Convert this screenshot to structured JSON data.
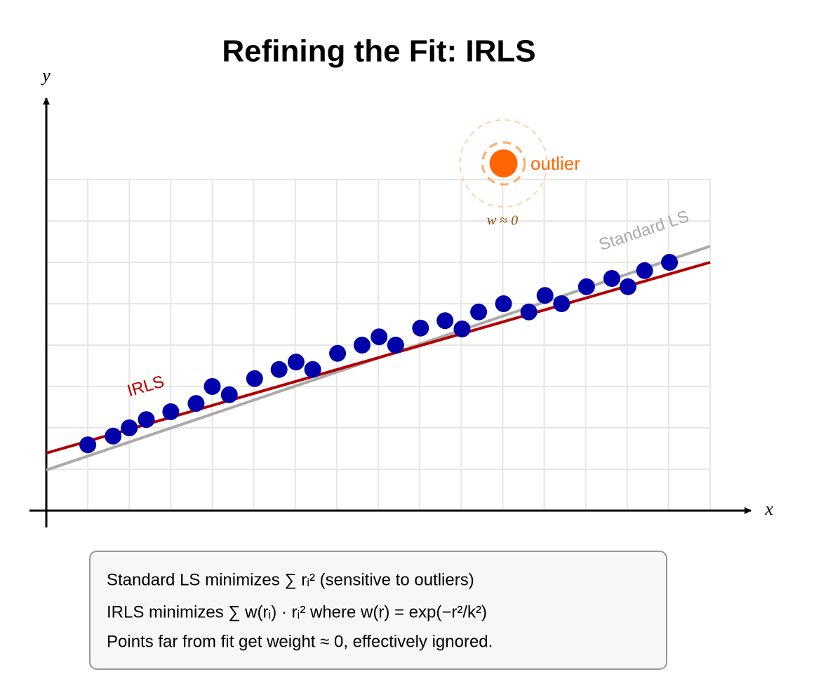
{
  "chart_data": {
    "type": "scatter",
    "title": "Refining the Fit: IRLS",
    "x_label": "x",
    "y_label": "y",
    "xlim": [
      0,
      16
    ],
    "ylim": [
      0,
      8
    ],
    "xticks": [
      1,
      2,
      3,
      4,
      5,
      6,
      7,
      8,
      9,
      10,
      11,
      12,
      13,
      14,
      15,
      16
    ],
    "yticks": [
      1,
      2,
      3,
      4,
      5,
      6,
      7,
      8
    ],
    "grid": true,
    "points": {
      "color": "#0000aa",
      "x": [
        1.0,
        1.61,
        2.0,
        2.41,
        3.0,
        3.61,
        4.0,
        4.41,
        5.02,
        5.61,
        6.02,
        6.42,
        7.02,
        7.61,
        8.02,
        8.42,
        9.02,
        9.61,
        10.02,
        10.42,
        11.02,
        11.63,
        12.02,
        12.42,
        13.02,
        13.63,
        14.02,
        14.42,
        15.02
      ],
      "y": [
        1.59,
        1.8,
        2.0,
        2.2,
        2.39,
        2.59,
        3.0,
        2.8,
        3.19,
        3.41,
        3.59,
        3.41,
        3.8,
        4.0,
        4.2,
        4.0,
        4.41,
        4.59,
        4.39,
        4.8,
        5.0,
        4.8,
        5.2,
        5.0,
        5.41,
        5.61,
        5.41,
        5.8,
        6.0
      ]
    },
    "outlier": {
      "label": "outlier",
      "weight_label": "w ≈ 0",
      "color": "#ff6600",
      "x": 11.02,
      "y": 8.39
    },
    "lines": [
      {
        "name": "Standard LS",
        "color": "#aaaaaa",
        "x": [
          0,
          16
        ],
        "y": [
          0.98,
          6.39
        ]
      },
      {
        "name": "IRLS",
        "color": "#b00000",
        "x": [
          0,
          16
        ],
        "y": [
          1.39,
          6.0
        ]
      }
    ],
    "note": [
      "Standard LS minimizes ∑ rᵢ² (sensitive to outliers)",
      "IRLS minimizes ∑ w(rᵢ) · rᵢ² where w(r) = exp(−r²/k²)",
      "Points far from fit get weight ≈ 0, effectively ignored."
    ]
  }
}
